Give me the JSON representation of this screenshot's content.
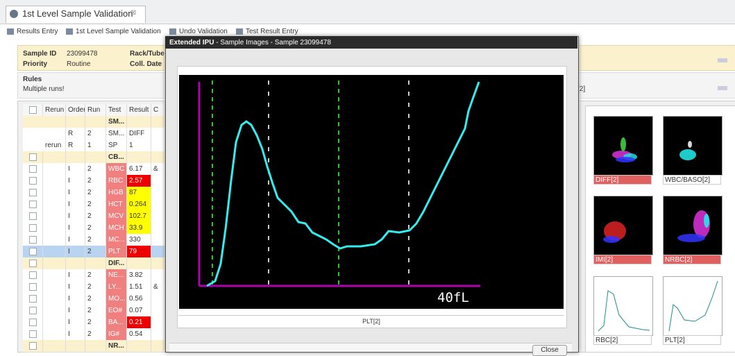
{
  "tab": {
    "title": "1st Level Sample Validation"
  },
  "toolbar": [
    "Results Entry",
    "1st Level Sample Validation",
    "Undo Validation",
    "Test Result Entry"
  ],
  "sample": {
    "id_label": "Sample ID",
    "id": "23099478",
    "priority_label": "Priority",
    "priority": "Routine",
    "rack_label": "Rack/Tube",
    "date_label": "Coll. Date"
  },
  "rules": {
    "title": "Rules",
    "text": "Multiple runs!",
    "right": "[2]"
  },
  "table": {
    "headers": [
      "Rerun",
      "Order",
      "Run",
      "Test",
      "Result",
      "C"
    ],
    "rows": [
      {
        "test": "SM..."
      },
      {
        "order": "R",
        "run": "2",
        "test": "SM...",
        "result": "DIFF"
      },
      {
        "rerun": "rerun",
        "order": "R",
        "run": "1",
        "test": "SP",
        "result": "1"
      },
      {
        "test": "CB..."
      },
      {
        "order": "I",
        "run": "2",
        "test": "WBC",
        "result": "6.17",
        "c": "&"
      },
      {
        "order": "I",
        "run": "2",
        "test": "RBC",
        "result": "2.57"
      },
      {
        "order": "I",
        "run": "2",
        "test": "HGB",
        "result": "87"
      },
      {
        "order": "I",
        "run": "2",
        "test": "HCT",
        "result": "0.264"
      },
      {
        "order": "I",
        "run": "2",
        "test": "MCV",
        "result": "102.7"
      },
      {
        "order": "I",
        "run": "2",
        "test": "MCH",
        "result": "33.9"
      },
      {
        "order": "I",
        "run": "2",
        "test": "MC...",
        "result": "330"
      },
      {
        "order": "I",
        "run": "2",
        "test": "PLT",
        "result": "79"
      },
      {
        "test": "DIF..."
      },
      {
        "order": "I",
        "run": "2",
        "test": "NE...",
        "result": "3.82"
      },
      {
        "order": "I",
        "run": "2",
        "test": "LY...",
        "result": "1.51",
        "c": "&"
      },
      {
        "order": "I",
        "run": "2",
        "test": "MO...",
        "result": "0.56"
      },
      {
        "order": "I",
        "run": "2",
        "test": "EO#",
        "result": "0.07"
      },
      {
        "order": "I",
        "run": "2",
        "test": "BA...",
        "result": "0.21"
      },
      {
        "order": "I",
        "run": "2",
        "test": "IG#",
        "result": "0.54"
      },
      {
        "test": "NR..."
      }
    ]
  },
  "dialog": {
    "title_bold": "Extended IPU",
    "title_rest": " - Sample Images - Sample 23099478",
    "graph_label": "40fL",
    "caption": "PLT[2]",
    "close": "Close"
  },
  "thumbnails": [
    "DIFF[2]",
    "WBC/BASO[2]",
    "IMI[2]",
    "NRBC[2]",
    "RBC[2]",
    "PLT[2]"
  ]
}
